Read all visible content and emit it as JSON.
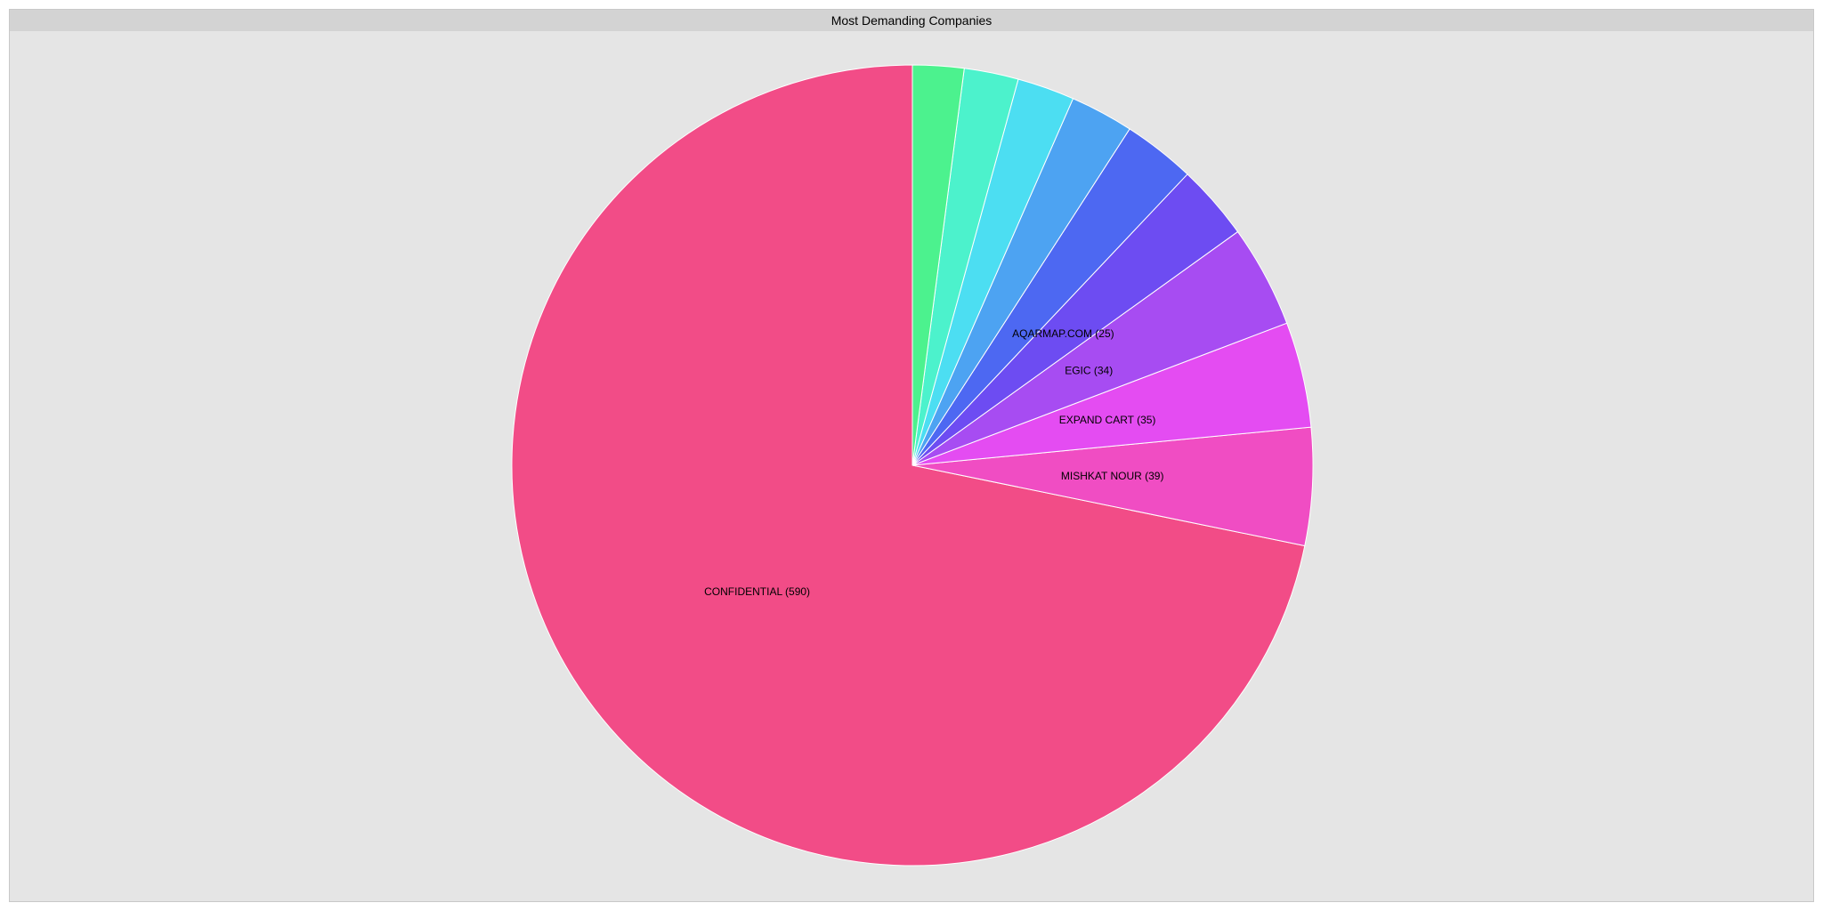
{
  "chart_data": {
    "type": "pie",
    "title": "Most Demanding Companies",
    "slices": [
      {
        "label": "CONFIDENTIAL",
        "value": 590,
        "color": "#f24c87",
        "show_label": true
      },
      {
        "label": "MISHKAT NOUR",
        "value": 39,
        "color": "#f04dc3",
        "show_label": true
      },
      {
        "label": "EXPAND CART",
        "value": 35,
        "color": "#e44cf2",
        "show_label": true
      },
      {
        "label": "EGIC",
        "value": 34,
        "color": "#a74cf2",
        "show_label": true
      },
      {
        "label": "AQARMAP.COM",
        "value": 25,
        "color": "#6d4cf2",
        "show_label": true
      },
      {
        "label": "",
        "value": 24,
        "color": "#4d68f2",
        "show_label": false
      },
      {
        "label": "",
        "value": 21,
        "color": "#4da3f2",
        "show_label": false
      },
      {
        "label": "",
        "value": 19,
        "color": "#4cdef2",
        "show_label": false
      },
      {
        "label": "",
        "value": 18,
        "color": "#4cf2cc",
        "show_label": false
      },
      {
        "label": "",
        "value": 17,
        "color": "#4cf28e",
        "show_label": false
      }
    ],
    "start_angle": "12 o'clock",
    "direction": "counterclockwise",
    "label_format": "{label} ({value})"
  }
}
